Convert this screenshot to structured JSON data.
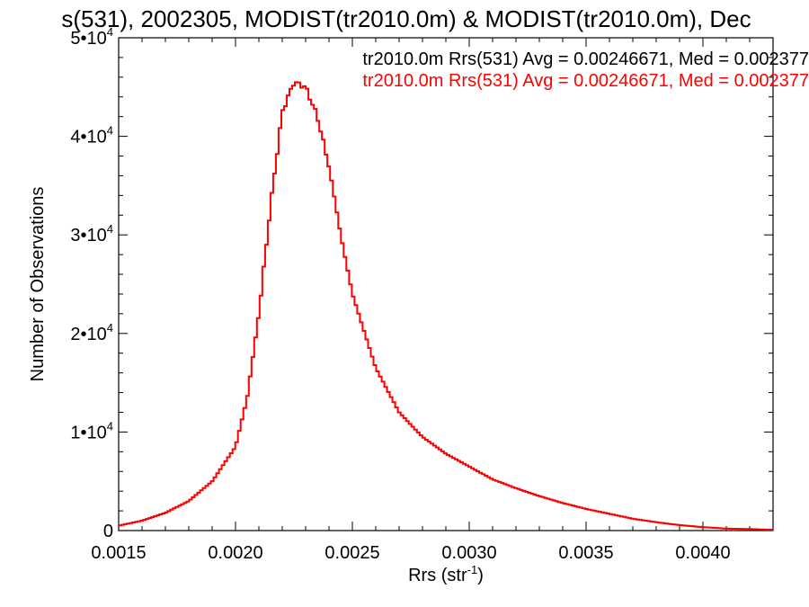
{
  "chart_data": {
    "type": "line",
    "title": "s(531), 2002305, MODIST(tr2010.0m) & MODIST(tr2010.0m), Dec",
    "xlabel": "Rrs (str",
    "xlabel_sup": "-1",
    "xlabel_close": ")",
    "ylabel": "Number of Observations",
    "xlim": [
      0.0015,
      0.0043
    ],
    "ylim": [
      0,
      50000
    ],
    "x_ticks": [
      {
        "value": 0.0015,
        "label": "0.0015"
      },
      {
        "value": 0.002,
        "label": "0.0020"
      },
      {
        "value": 0.0025,
        "label": "0.0025"
      },
      {
        "value": 0.003,
        "label": "0.0030"
      },
      {
        "value": 0.0035,
        "label": "0.0035"
      },
      {
        "value": 0.004,
        "label": "0.0040"
      }
    ],
    "y_ticks": [
      {
        "value": 0,
        "mantissa": "0",
        "exp": ""
      },
      {
        "value": 10000,
        "mantissa": "1•10",
        "exp": "4"
      },
      {
        "value": 20000,
        "mantissa": "2•10",
        "exp": "4"
      },
      {
        "value": 30000,
        "mantissa": "3•10",
        "exp": "4"
      },
      {
        "value": 40000,
        "mantissa": "4•10",
        "exp": "4"
      },
      {
        "value": 50000,
        "mantissa": "5•10",
        "exp": "4"
      }
    ],
    "grid": false,
    "legend_position": "top-right",
    "series": [
      {
        "name": "tr2010.0m Rrs(531) Avg = 0.00246671, Med = 0.002377",
        "color": "#000000",
        "x": [
          0.0015,
          0.0016,
          0.0017,
          0.0018,
          0.0019,
          0.002,
          0.00205,
          0.0021,
          0.00215,
          0.0022,
          0.00225,
          0.0023,
          0.00235,
          0.0024,
          0.00245,
          0.0025,
          0.0026,
          0.0027,
          0.0028,
          0.0029,
          0.003,
          0.0031,
          0.0032,
          0.0033,
          0.0034,
          0.0035,
          0.0036,
          0.0037,
          0.0038,
          0.0039,
          0.004,
          0.0041,
          0.0042,
          0.0043
        ],
        "y": [
          500,
          1000,
          1800,
          3000,
          5000,
          8500,
          13500,
          22000,
          33000,
          42500,
          45500,
          45000,
          42000,
          37000,
          30000,
          24000,
          16500,
          12000,
          9500,
          7800,
          6500,
          5200,
          4300,
          3500,
          2800,
          2200,
          1700,
          1200,
          850,
          550,
          350,
          200,
          150,
          80
        ]
      },
      {
        "name": "tr2010.0m Rrs(531) Avg = 0.00246671, Med = 0.002377",
        "color": "#ff0000",
        "x": [
          0.0015,
          0.0016,
          0.0017,
          0.0018,
          0.0019,
          0.002,
          0.00205,
          0.0021,
          0.00215,
          0.0022,
          0.00225,
          0.0023,
          0.00235,
          0.0024,
          0.00245,
          0.0025,
          0.0026,
          0.0027,
          0.0028,
          0.0029,
          0.003,
          0.0031,
          0.0032,
          0.0033,
          0.0034,
          0.0035,
          0.0036,
          0.0037,
          0.0038,
          0.0039,
          0.004,
          0.0041,
          0.0042,
          0.0043
        ],
        "y": [
          500,
          1000,
          1800,
          3000,
          5000,
          8500,
          13500,
          22000,
          33000,
          42500,
          45500,
          45000,
          42000,
          37000,
          30000,
          24000,
          16500,
          12000,
          9500,
          7800,
          6500,
          5200,
          4300,
          3500,
          2800,
          2200,
          1700,
          1200,
          850,
          550,
          350,
          200,
          150,
          80
        ]
      }
    ]
  }
}
